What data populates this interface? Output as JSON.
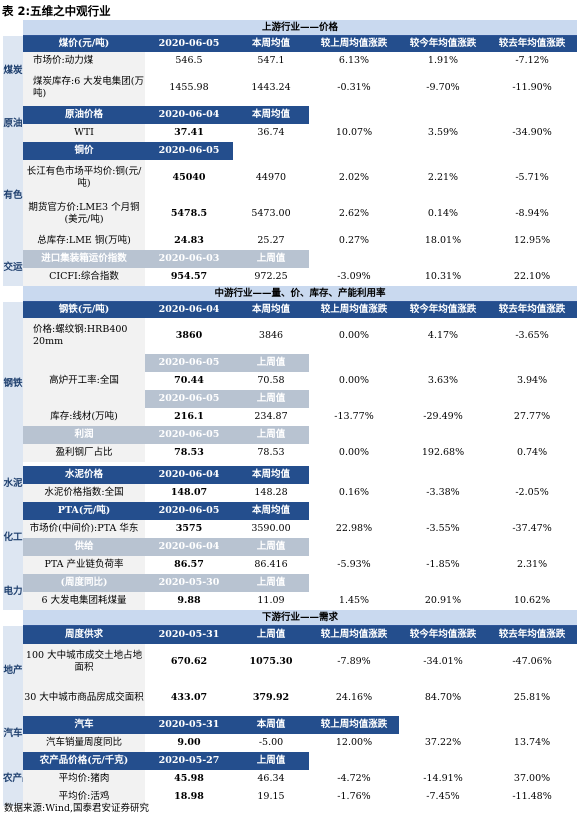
{
  "caption": "表 2:五维之中观行业",
  "source_note": "数据来源:Wind,国泰君安证券研究",
  "sections": {
    "upstream": "上游行业——价格",
    "midstream": "中游行业——量、价、库存、产能利用率",
    "downstream": "下游行业——需求"
  },
  "industries": {
    "coal": "煤炭",
    "oil": "原油",
    "metal": "有色",
    "shipping": "交运",
    "steel": "钢铁",
    "cement": "水泥",
    "chem": "化工",
    "power": "电力",
    "realestate": "地产",
    "auto": "汽车",
    "agri": "农产品"
  },
  "headers": {
    "this_week": "本周均值",
    "last_week": "上周值",
    "this_week_value": "本周值",
    "wow": "较上周均值涨跌",
    "ytd": "较今年均值涨跌",
    "yoy": "较去年均值涨跌"
  },
  "rows": {
    "coal_h": {
      "label": "煤价(元/吨)",
      "date": "2020-06-05"
    },
    "coal1": {
      "label": "市场价:动力煤",
      "latest": "546.5",
      "avg": "547.1",
      "wow": "6.13%",
      "ytd": "1.91%",
      "yoy": "-7.12%"
    },
    "coal2": {
      "label": "煤炭库存:6 大发电集团(万吨)",
      "latest": "1455.98",
      "avg": "1443.24",
      "wow": "-0.31%",
      "ytd": "-9.70%",
      "yoy": "-11.90%"
    },
    "oil_h": {
      "label": "原油价格",
      "date": "2020-06-04"
    },
    "oil1": {
      "label": "WTI",
      "latest": "37.41",
      "avg": "36.74",
      "wow": "10.07%",
      "ytd": "3.59%",
      "yoy": "-34.90%"
    },
    "metal_h": {
      "label": "铜价",
      "date": "2020-06-05"
    },
    "metal1": {
      "label": "长江有色市场平均价:铜(元/吨)",
      "latest": "45040",
      "avg": "44970",
      "wow": "2.02%",
      "ytd": "2.21%",
      "yoy": "-5.71%"
    },
    "metal2": {
      "label": "期货官方价:LME3 个月铜(美元/吨)",
      "latest": "5478.5",
      "avg": "5473.00",
      "wow": "2.62%",
      "ytd": "0.14%",
      "yoy": "-8.94%"
    },
    "metal3": {
      "label": "总库存:LME 铜(万吨)",
      "latest": "24.83",
      "avg": "25.27",
      "wow": "0.27%",
      "ytd": "18.01%",
      "yoy": "12.95%"
    },
    "ship_h": {
      "label": "进口集装箱运价指数",
      "date": "2020-06-03"
    },
    "ship1": {
      "label": "CICFI:综合指数",
      "latest": "954.57",
      "avg": "972.25",
      "wow": "-3.09%",
      "ytd": "10.31%",
      "yoy": "22.10%"
    },
    "steel_h": {
      "label": "钢铁(元/吨)",
      "date": "2020-06-04"
    },
    "steel1": {
      "label": "价格:螺纹钢:HRB400 20mm",
      "latest": "3860",
      "avg": "3846",
      "wow": "0.00%",
      "ytd": "4.17%",
      "yoy": "-3.65%"
    },
    "steel2_h": {
      "date": "2020-06-05"
    },
    "steel2": {
      "label": "高炉开工率:全国",
      "latest": "70.44",
      "avg": "70.58",
      "wow": "0.00%",
      "ytd": "3.63%",
      "yoy": "3.94%"
    },
    "steel3_h": {
      "date": "2020-06-05"
    },
    "steel3": {
      "label": "库存:线材(万吨)",
      "latest": "216.1",
      "avg": "234.87",
      "wow": "-13.77%",
      "ytd": "-29.49%",
      "yoy": "27.77%"
    },
    "steel4_h": {
      "label": "利润",
      "date": "2020-06-05"
    },
    "steel4": {
      "label": "盈利钢厂占比",
      "latest": "78.53",
      "avg": "78.53",
      "wow": "0.00%",
      "ytd": "192.68%",
      "yoy": "0.74%"
    },
    "cement_h": {
      "label": "水泥价格",
      "date": "2020-06-04"
    },
    "cement1": {
      "label": "水泥价格指数:全国",
      "latest": "148.07",
      "avg": "148.28",
      "wow": "0.16%",
      "ytd": "-3.38%",
      "yoy": "-2.05%"
    },
    "chem_h": {
      "label": "PTA(元/吨)",
      "date": "2020-06-05"
    },
    "chem1": {
      "label": "市场价(中间价):PTA 华东",
      "latest": "3575",
      "avg": "3590.00",
      "wow": "22.98%",
      "ytd": "-3.55%",
      "yoy": "-37.47%"
    },
    "chem2_h": {
      "label": "供给",
      "date": "2020-06-04"
    },
    "chem2": {
      "label": "PTA 产业链负荷率",
      "latest": "86.57",
      "avg": "86.416",
      "wow": "-5.93%",
      "ytd": "-1.85%",
      "yoy": "2.31%"
    },
    "power_h": {
      "label": "(周度同比)",
      "date": "2020-05-30"
    },
    "power1": {
      "label": "6 大发电集团耗煤量",
      "latest": "9.88",
      "avg": "11.09",
      "wow": "1.45%",
      "ytd": "20.91%",
      "yoy": "10.62%"
    },
    "re_h": {
      "label": "周度供求",
      "date": "2020-05-31"
    },
    "re1": {
      "label": "100 大中城市成交土地占地面积",
      "latest": "670.62",
      "avg": "1075.30",
      "wow": "-7.89%",
      "ytd": "-34.01%",
      "yoy": "-47.06%"
    },
    "re2": {
      "label": "30 大中城市商品房成交面积",
      "latest": "433.07",
      "avg": "379.92",
      "wow": "24.16%",
      "ytd": "84.70%",
      "yoy": "25.81%"
    },
    "auto_h": {
      "label": "汽车",
      "date": "2020-05-31"
    },
    "auto1": {
      "label": "汽车销量周度同比",
      "latest": "9.00",
      "avg": "-5.00",
      "wow": "12.00%",
      "ytd": "37.22%",
      "yoy": "13.74%"
    },
    "agri_h": {
      "label": "农产品价格(元/千克)",
      "date": "2020-05-27"
    },
    "agri1": {
      "label": "平均价:猪肉",
      "latest": "45.98",
      "avg": "46.34",
      "wow": "-4.72%",
      "ytd": "-14.91%",
      "yoy": "37.00%"
    },
    "agri2": {
      "label": "平均价:活鸡",
      "latest": "18.98",
      "avg": "19.15",
      "wow": "-1.76%",
      "ytd": "-7.45%",
      "yoy": "-11.48%"
    }
  },
  "colors": {
    "header_blue": "#244e8d",
    "section_blue": "#c9d9ef",
    "industry_bg": "#dde6f2",
    "label_gray": "#f2f2f2",
    "muted_header": "#b8c3d1"
  }
}
